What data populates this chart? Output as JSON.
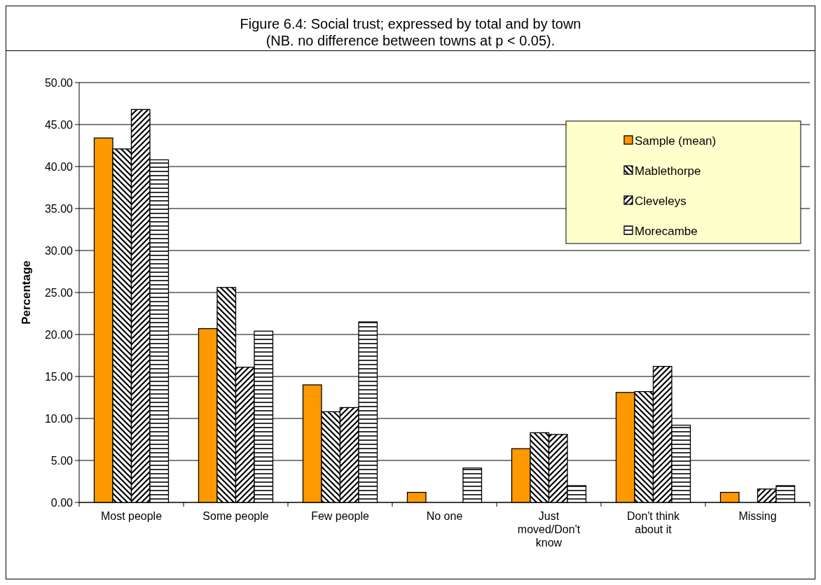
{
  "chart_data": {
    "type": "bar",
    "title": "Figure 6.4: Social trust; expressed by total and by town",
    "subtitle": "(NB. no difference between towns at p < 0.05).",
    "ylabel": "Percentage",
    "categories": [
      "Most people",
      "Some people",
      "Few people",
      "No one",
      "Just moved/Don't know",
      "Don't think about it",
      "Missing"
    ],
    "series": [
      {
        "name": "Sample (mean)",
        "color": "#ff9900",
        "values": [
          43.4,
          20.7,
          14.0,
          1.2,
          6.4,
          13.1,
          1.2
        ]
      },
      {
        "name": "Mablethorpe",
        "color": "#000000",
        "values": [
          42.1,
          25.6,
          10.8,
          0,
          8.3,
          13.2,
          0
        ]
      },
      {
        "name": "Cleveleys",
        "color": "#000000",
        "values": [
          46.8,
          16.1,
          11.3,
          0,
          8.1,
          16.2,
          1.6
        ]
      },
      {
        "name": "Morecambe",
        "color": "#000000",
        "values": [
          40.8,
          20.4,
          21.5,
          4.1,
          2.0,
          9.2,
          2.0
        ]
      }
    ],
    "ylim": [
      0,
      50
    ],
    "yticks": [
      {
        "value": 0,
        "label": "0.00"
      },
      {
        "value": 5,
        "label": "5.00"
      },
      {
        "value": 10,
        "label": "10.00"
      },
      {
        "value": 15,
        "label": "15.00"
      },
      {
        "value": 20,
        "label": "20.00"
      },
      {
        "value": 25,
        "label": "25.00"
      },
      {
        "value": 30,
        "label": "30.00"
      },
      {
        "value": 35,
        "label": "35.00"
      },
      {
        "value": 40,
        "label": "40.00"
      },
      {
        "value": 45,
        "label": "45.00"
      },
      {
        "value": 50,
        "label": "50.00"
      }
    ],
    "grid": "y",
    "legend": "top right"
  }
}
